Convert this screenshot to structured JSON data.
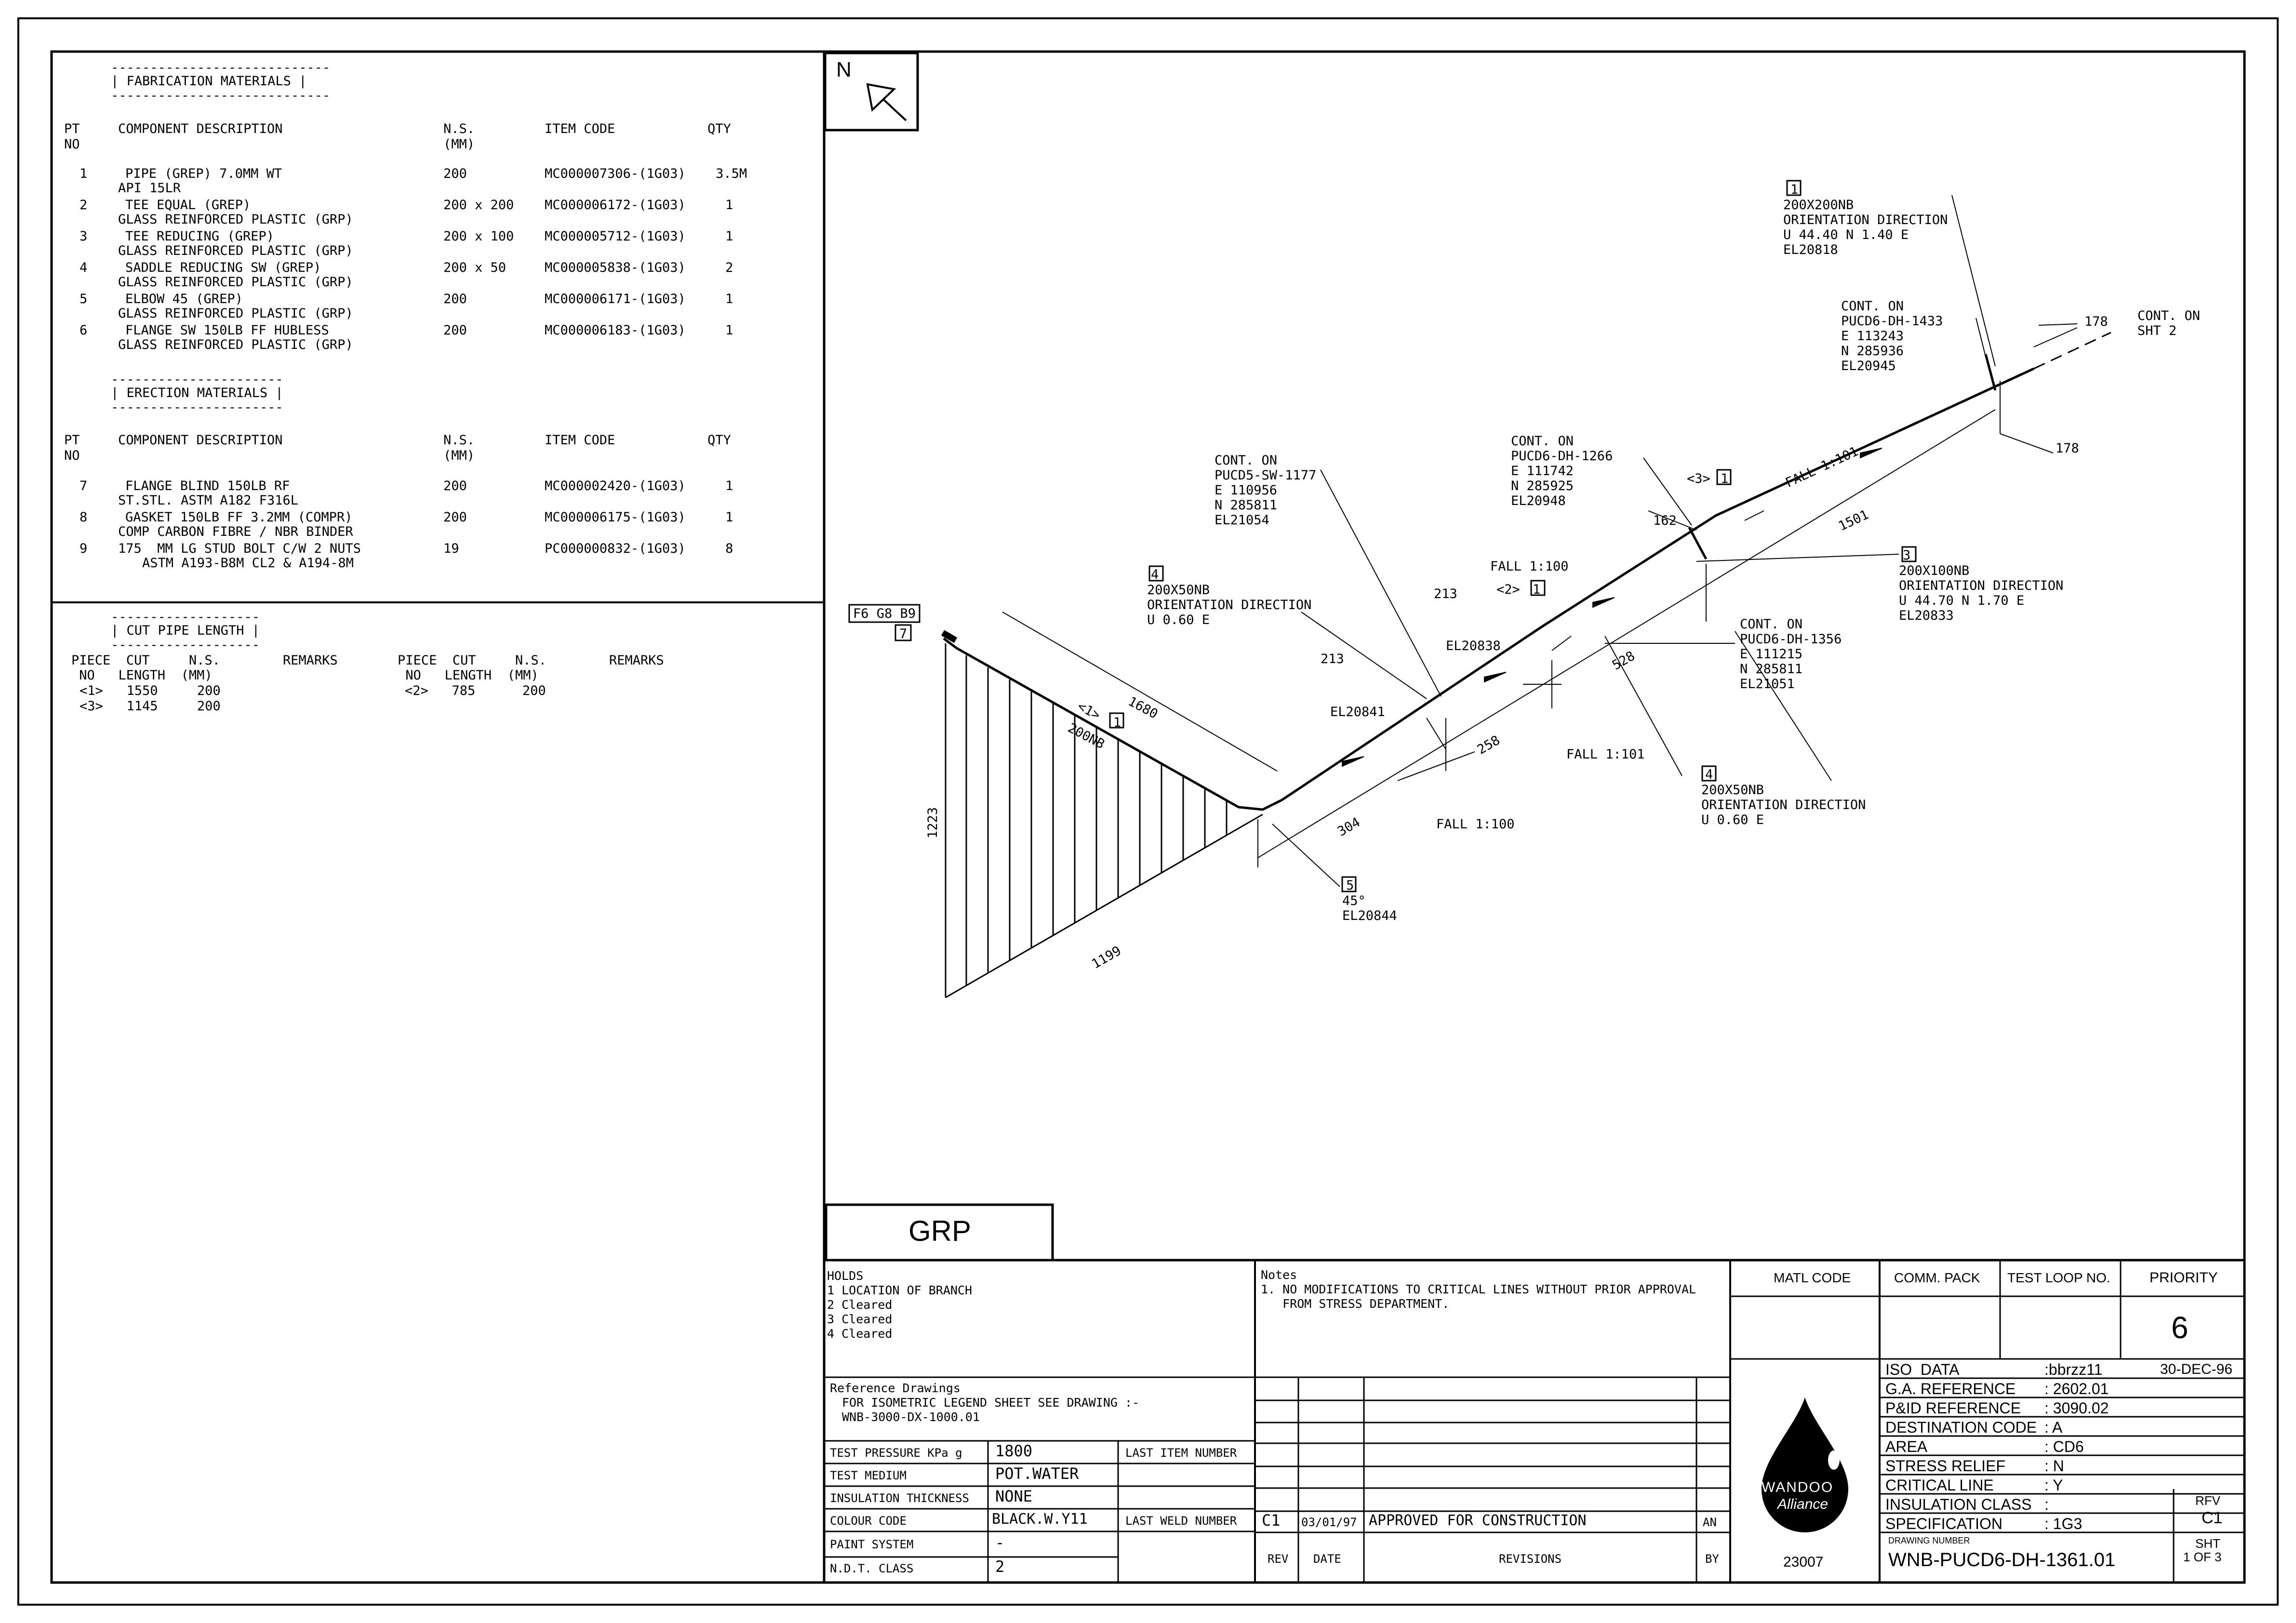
{
  "north_label": "N",
  "fabrication": {
    "title": "| FABRICATION MATERIALS |",
    "dash": "----------------------------",
    "head": {
      "pt": "PT",
      "no": "NO",
      "desc": "COMPONENT DESCRIPTION",
      "ns": "N.S.",
      "mm": "(MM)",
      "code": "ITEM CODE",
      "qty": "QTY"
    },
    "rows": [
      {
        "pt": "1",
        "desc": "PIPE (GREP) 7.0MM WT",
        "desc2": "API 15LR",
        "ns": "200",
        "code": "MC000007306-(1G03)",
        "qty": "3.5M"
      },
      {
        "pt": "2",
        "desc": "TEE EQUAL (GREP)",
        "desc2": "GLASS REINFORCED PLASTIC (GRP)",
        "ns": "200 x 200",
        "code": "MC000006172-(1G03)",
        "qty": "1"
      },
      {
        "pt": "3",
        "desc": "TEE REDUCING (GREP)",
        "desc2": "GLASS REINFORCED PLASTIC (GRP)",
        "ns": "200 x 100",
        "code": "MC000005712-(1G03)",
        "qty": "1"
      },
      {
        "pt": "4",
        "desc": "SADDLE REDUCING SW (GREP)",
        "desc2": "GLASS REINFORCED PLASTIC (GRP)",
        "ns": "200 x 50",
        "code": "MC000005838-(1G03)",
        "qty": "2"
      },
      {
        "pt": "5",
        "desc": "ELBOW 45 (GREP)",
        "desc2": "GLASS REINFORCED PLASTIC (GRP)",
        "ns": "200",
        "code": "MC000006171-(1G03)",
        "qty": "1"
      },
      {
        "pt": "6",
        "desc": "FLANGE SW 150LB FF HUBLESS",
        "desc2": "GLASS REINFORCED PLASTIC (GRP)",
        "ns": "200",
        "code": "MC000006183-(1G03)",
        "qty": "1"
      }
    ]
  },
  "erection": {
    "title": "| ERECTION MATERIALS |",
    "dash": "----------------------",
    "rows": [
      {
        "pt": "7",
        "desc": "FLANGE BLIND 150LB RF",
        "desc2": "ST.STL. ASTM A182 F316L",
        "ns": "200",
        "code": "MC000002420-(1G03)",
        "qty": "1"
      },
      {
        "pt": "8",
        "desc": "GASKET 150LB FF 3.2MM (COMPR)",
        "desc2": "COMP CARBON FIBRE / NBR BINDER",
        "ns": "200",
        "code": "MC000006175-(1G03)",
        "qty": "1"
      },
      {
        "pt": "9",
        "desc": "175  MM LG STUD BOLT C/W 2 NUTS",
        "desc2": "ASTM A193-B8M CL2 & A194-8M",
        "ns": "19",
        "code": "PC000000832-(1G03)",
        "qty": "8"
      }
    ]
  },
  "cut_pipe": {
    "title": "| CUT PIPE LENGTH |",
    "dash": "-------------------",
    "head1": "PIECE  CUT     N.S.        REMARKS",
    "head2": " NO   LENGTH  (MM)",
    "rows_left": [
      "<1>   1550     200",
      "<3>   1145     200"
    ],
    "rows_right": [
      "<2>   785      200"
    ]
  },
  "iso": {
    "labels": [
      {
        "id": "2",
        "lines": [
          "200X200NB",
          "ORIENTATION DIRECTION",
          "U 44.40 N 1.40 E",
          "EL20818"
        ]
      },
      {
        "id": "contA",
        "lines": [
          "CONT. ON",
          "PUCD6-DH-1433",
          "E 113243",
          "N 285936",
          "EL20945"
        ]
      },
      {
        "id": "contB",
        "lines": [
          "CONT. ON",
          "SHT 2"
        ]
      },
      {
        "id": "contC",
        "lines": [
          "CONT. ON",
          "PUCD6-DH-1266",
          "E 111742",
          "N 285925",
          "EL20948"
        ]
      },
      {
        "id": "contD",
        "lines": [
          "CONT. ON",
          "PUCD5-SW-1177",
          "E 110956",
          "N 285811",
          "EL21054"
        ]
      },
      {
        "id": "4a",
        "lines": [
          "200X50NB",
          "ORIENTATION DIRECTION",
          "U 0.60 E"
        ]
      },
      {
        "id": "3",
        "lines": [
          "200X100NB",
          "ORIENTATION DIRECTION",
          "U 44.70 N 1.70 E",
          "EL20833"
        ]
      },
      {
        "id": "contE",
        "lines": [
          "CONT. ON",
          "PUCD6-DH-1356",
          "E 111215",
          "N 285811",
          "EL21051"
        ]
      },
      {
        "id": "4b",
        "lines": [
          "200X50NB",
          "ORIENTATION DIRECTION",
          "U 0.60 E"
        ]
      },
      {
        "id": "5",
        "lines": [
          "45°",
          "EL20844"
        ]
      }
    ],
    "dims": [
      "178",
      "178",
      "1501",
      "528",
      "258",
      "304",
      "1680",
      "1223",
      "1199",
      "213",
      "213",
      "162"
    ],
    "falls": [
      "FALL 1:101",
      "FALL 1:100",
      "FALL 1:101",
      "FALL 1:100"
    ],
    "els": [
      "EL20838",
      "EL20841"
    ],
    "tags": [
      "F6 G8 B9",
      "7",
      "1",
      "2",
      "3",
      "4",
      "5",
      "<1>",
      "<2>",
      "<3>",
      "200NB"
    ]
  },
  "grp_label": "GRP",
  "holds": {
    "title": "HOLDS",
    "lines": [
      "1 LOCATION OF BRANCH",
      "2 Cleared",
      "3 Cleared",
      "4 Cleared"
    ]
  },
  "notes": {
    "title": "Notes",
    "lines": [
      "1. NO MODIFICATIONS TO CRITICAL LINES WITHOUT PRIOR APPROVAL",
      "   FROM STRESS DEPARTMENT."
    ]
  },
  "references": {
    "title": "Reference Drawings",
    "lines": [
      "FOR ISOMETRIC LEGEND SHEET SEE DRAWING :-",
      "WNB-3000-DX-1000.01"
    ]
  },
  "test": {
    "pressure_label": "TEST PRESSURE KPa g",
    "pressure": "1800",
    "medium_label": "TEST MEDIUM",
    "medium": "POT.WATER",
    "insulation_label": "INSULATION THICKNESS",
    "insulation": "NONE",
    "colour_label": "COLOUR CODE",
    "colour": "BLACK.W.Y11",
    "paint_label": "PAINT SYSTEM",
    "paint": "-",
    "ndt_label": "N.D.T. CLASS",
    "ndt": "2",
    "last_item_label": "LAST ITEM NUMBER",
    "last_weld_label": "LAST WELD NUMBER"
  },
  "revision": {
    "rev": "C1",
    "date": "03/01/97",
    "text": "APPROVED FOR CONSTRUCTION",
    "by": "AN",
    "head_rev": "REV",
    "head_date": "DATE",
    "head_revisions": "REVISIONS",
    "head_by": "BY"
  },
  "title_block": {
    "matl_code": "MATL CODE",
    "comm_pack": "COMM. PACK",
    "test_loop": "TEST LOOP NO.",
    "priority": "PRIORITY",
    "priority_value": "6",
    "logo_text": "WANDOO",
    "logo_text2": "Alliance",
    "logo_number": "23007",
    "rows": [
      {
        "k": "ISO  DATA",
        "v": ":bbrzz11",
        "v2": "30-DEC-96"
      },
      {
        "k": "G.A. REFERENCE",
        "v": ": 2602.01"
      },
      {
        "k": "P&ID REFERENCE",
        "v": ": 3090.02"
      },
      {
        "k": "DESTINATION CODE",
        "v": ": A"
      },
      {
        "k": "AREA",
        "v": ": CD6"
      },
      {
        "k": "STRESS RELIEF",
        "v": ": N"
      },
      {
        "k": "CRITICAL LINE",
        "v": ": Y"
      },
      {
        "k": "INSULATION CLASS",
        "v": ":"
      },
      {
        "k": "SPECIFICATION",
        "v": ": 1G3"
      }
    ],
    "rfv_label": "RFV",
    "rfv_value": "C1",
    "drawing_number_label": "DRAWING NUMBER",
    "drawing_number": "WNB-PUCD6-DH-1361.01",
    "sht_label": "SHT",
    "sht_value": "1 OF 3"
  }
}
